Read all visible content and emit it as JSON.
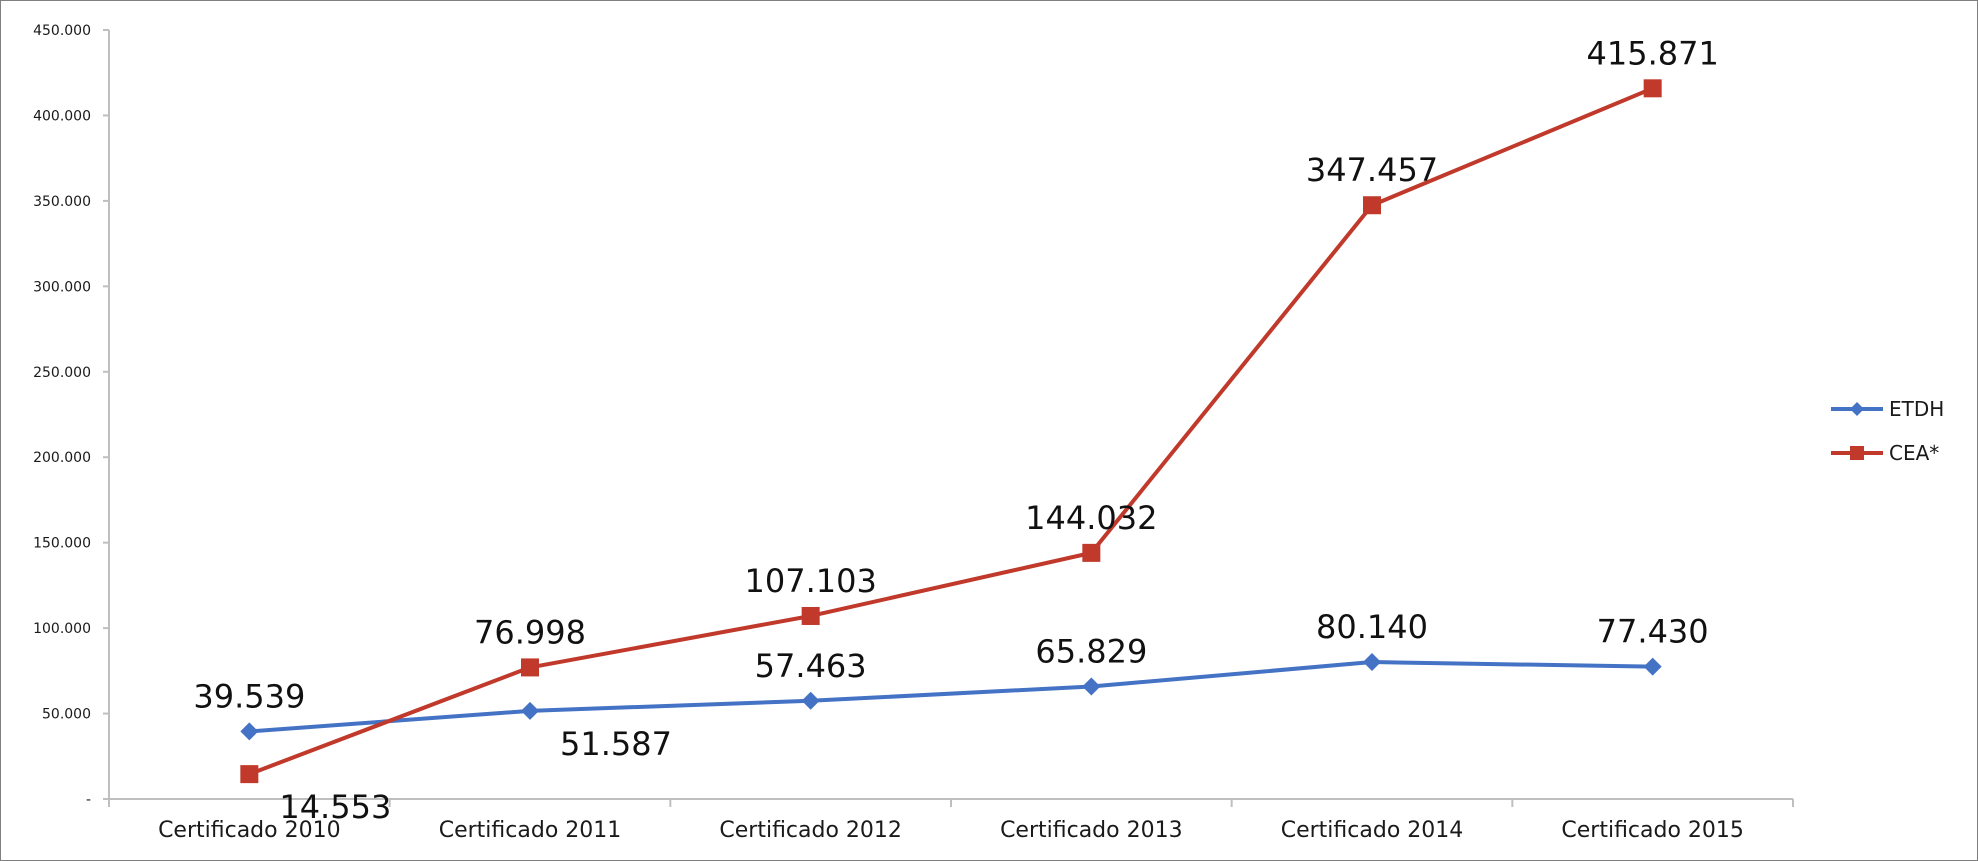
{
  "chart_data": {
    "type": "line",
    "title": "",
    "xlabel": "",
    "ylabel": "",
    "categories": [
      "Certificado 2010",
      "Certificado 2011",
      "Certificado 2012",
      "Certificado 2013",
      "Certificado 2014",
      "Certificado 2015"
    ],
    "ylim": [
      0,
      450000
    ],
    "yticks": [
      0,
      50000,
      100000,
      150000,
      200000,
      250000,
      300000,
      350000,
      400000,
      450000
    ],
    "ytick_labels": [
      "-",
      "50.000",
      "100.000",
      "150.000",
      "200.000",
      "250.000",
      "300.000",
      "350.000",
      "400.000",
      "450.000"
    ],
    "grid": false,
    "legend_position": "right",
    "series": [
      {
        "name": "ETDH",
        "color": "#4472C4",
        "marker": "diamond",
        "values": [
          39539,
          51587,
          57463,
          65829,
          80140,
          77430
        ],
        "labels": [
          "39.539",
          "51.587",
          "57.463",
          "65.829",
          "80.140",
          "77.430"
        ],
        "label_side": [
          "above",
          "below",
          "above",
          "above",
          "above",
          "above"
        ]
      },
      {
        "name": "CEA*",
        "color": "#C0392B",
        "marker": "square",
        "values": [
          14553,
          76998,
          107103,
          144032,
          347457,
          415871
        ],
        "labels": [
          "14.553",
          "76.998",
          "107.103",
          "144.032",
          "347.457",
          "415.871"
        ],
        "label_side": [
          "below",
          "above",
          "above",
          "above",
          "above",
          "above"
        ]
      }
    ]
  }
}
